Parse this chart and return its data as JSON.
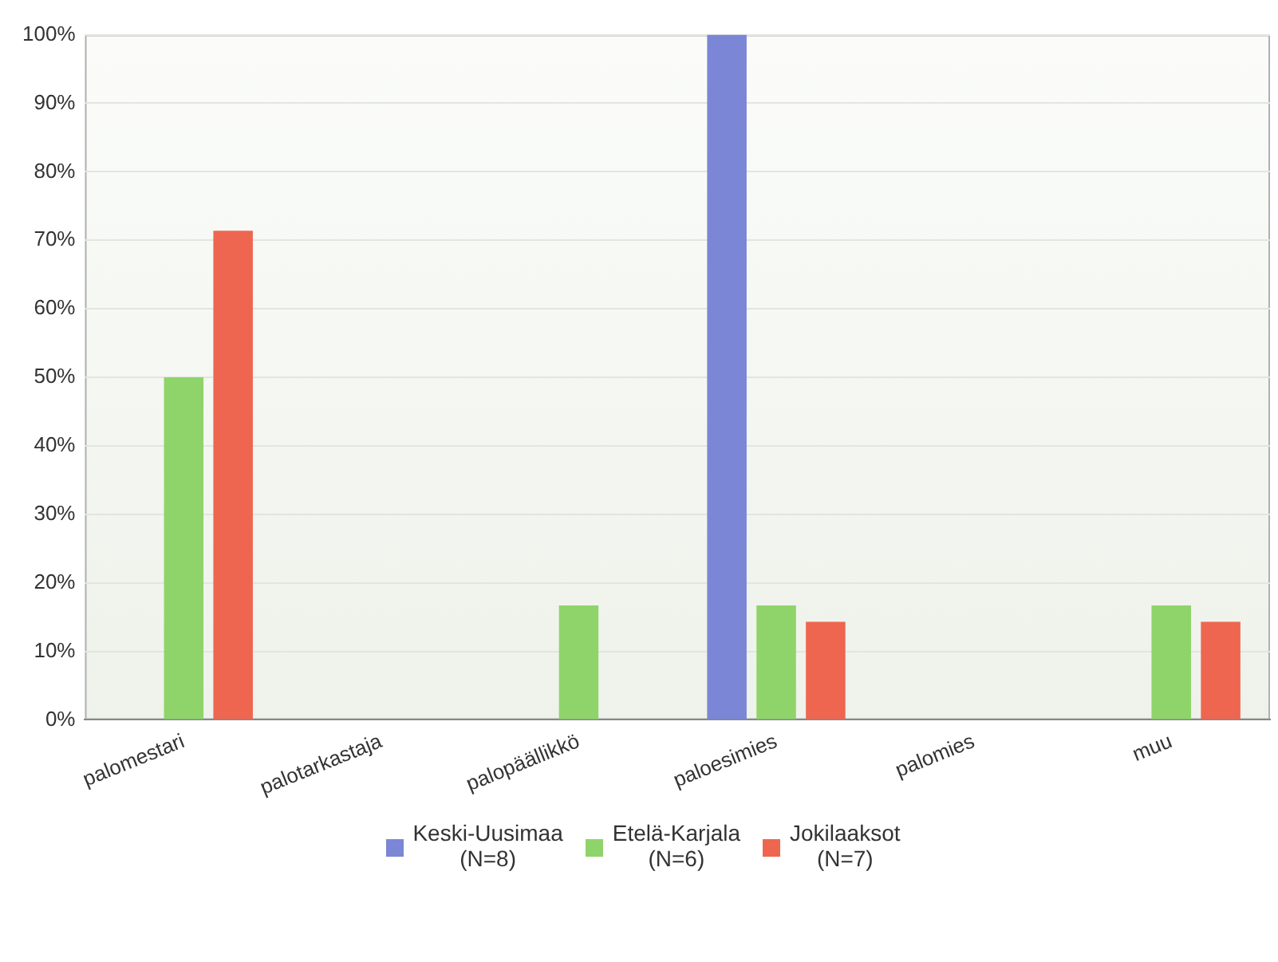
{
  "chart_data": {
    "type": "bar",
    "categories": [
      "palomestari",
      "palotarkastaja",
      "palopäällikkö",
      "paloesimies",
      "palomies",
      "muu"
    ],
    "series": [
      {
        "name": "Keski-Uusimaa\n(N=8)",
        "color": "#7b86d6",
        "values": [
          0,
          0,
          0,
          100,
          0,
          0
        ]
      },
      {
        "name": "Etelä-Karjala\n(N=6)",
        "color": "#8fd46a",
        "values": [
          50,
          0,
          16.7,
          16.7,
          0,
          16.7
        ]
      },
      {
        "name": "Jokilaaksot\n(N=7)",
        "color": "#ee6650",
        "values": [
          71.4,
          0,
          0,
          14.3,
          0,
          14.3
        ]
      }
    ],
    "ylim": [
      0,
      100
    ],
    "yticks": [
      {
        "value": 0,
        "label": "0%"
      },
      {
        "value": 10,
        "label": "10%"
      },
      {
        "value": 20,
        "label": "20%"
      },
      {
        "value": 30,
        "label": "30%"
      },
      {
        "value": 40,
        "label": "40%"
      },
      {
        "value": 50,
        "label": "50%"
      },
      {
        "value": 60,
        "label": "60%"
      },
      {
        "value": 70,
        "label": "70%"
      },
      {
        "value": 80,
        "label": "80%"
      },
      {
        "value": 90,
        "label": "90%"
      },
      {
        "value": 100,
        "label": "100%"
      }
    ],
    "grid": "y",
    "legend": "bottom"
  }
}
